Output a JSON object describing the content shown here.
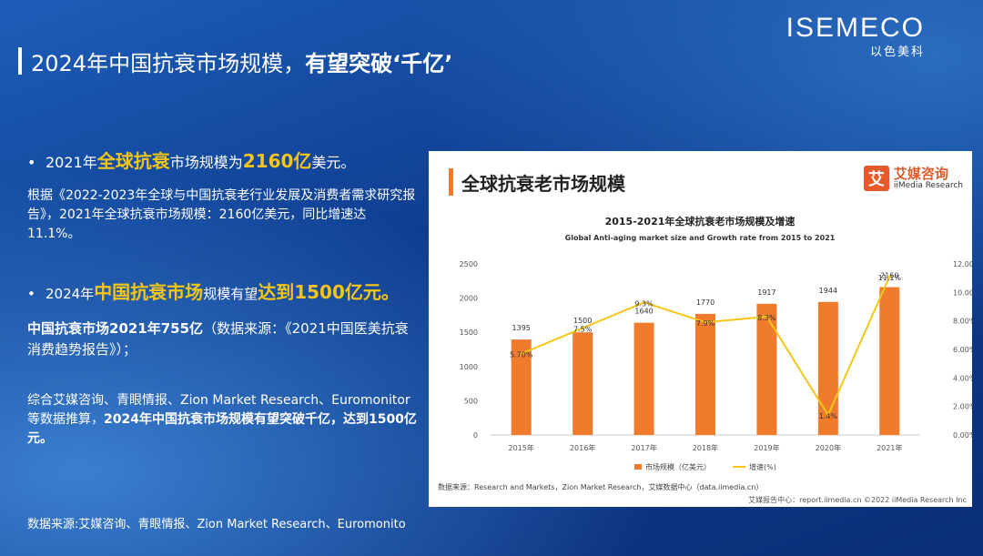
{
  "header": {
    "title_part1": "2024年中国抗衰市场规模，",
    "title_part2": "有望突破‘千亿’"
  },
  "logo": {
    "name": "ISEMECO",
    "sub": "以色美科"
  },
  "left": {
    "bullet1_a": "2021年",
    "bullet1_hl": "全球抗衰",
    "bullet1_b": "市场规模为",
    "bullet1_hl2": "2160亿",
    "bullet1_c": "美元。",
    "para1": "根据《2022-2023年全球与中国抗衰老行业发展及消费者需求研究报告》，2021年全球抗衰市场规模：2160亿美元，同比增速达11.1%。",
    "bullet2_a": "2024年",
    "bullet2_hl": "中国抗衰市场",
    "bullet2_b": "规模有望",
    "bullet2_hl2": "达到1500亿元。",
    "para2_bold": "中国抗衰市场2021年755亿",
    "para2_rest": "（数据来源：《2021中国医美抗衰消费趋势报告》）；",
    "para3_a": "综合艾媒咨询、青眼情报、Zion Market Research、Euromonitor等数据推算，",
    "para3_b": "2024年中国抗衰市场规模有望突破千亿，达到1500亿元。",
    "source": "数据来源:艾媒咨询、青眼情报、Zion Market Research、Euromonito"
  },
  "panel": {
    "title": "全球抗衰老市场规模",
    "logo_cn": "艾媒咨询",
    "logo_en": "iiMedia Research",
    "logo_char": "艾",
    "source": "数据来源：Research and Markets，Zion Market Research，艾媒数据中心（data.iimedia.cn）",
    "footer": "艾媒报告中心：report.iimedia.cn ©2022 iiMedia Research Inc"
  },
  "chart_data": {
    "type": "bar",
    "title": "2015-2021年全球抗衰老市场规模及增速",
    "subtitle": "Global Anti-aging market size and Growth rate from 2015 to 2021",
    "categories": [
      "2015年",
      "2016年",
      "2017年",
      "2018年",
      "2019年",
      "2020年",
      "2021年"
    ],
    "series": [
      {
        "name": "市场规模（亿美元）",
        "type": "bar",
        "values": [
          1395,
          1500,
          1640,
          1770,
          1917,
          1944,
          2160
        ],
        "color": "#f07b2d"
      },
      {
        "name": "增速(%)",
        "type": "line",
        "values": [
          5.7,
          7.5,
          9.3,
          7.9,
          8.3,
          1.4,
          11.1
        ],
        "labels": [
          "5.70%",
          "7.5%",
          "9.3%",
          "7.9%",
          "8.3%",
          "1.4%",
          "11.1%"
        ],
        "color": "#f5c518"
      }
    ],
    "y_left": {
      "ticks": [
        "0",
        "500",
        "1000",
        "1500",
        "2000",
        "2500"
      ],
      "range": [
        0,
        2500
      ]
    },
    "y_right": {
      "ticks": [
        "0.00%",
        "2.00%",
        "4.00%",
        "6.00%",
        "8.00%",
        "10.00%",
        "12.00%"
      ],
      "range": [
        0,
        12
      ]
    },
    "grid": false,
    "legend_position": "bottom"
  }
}
